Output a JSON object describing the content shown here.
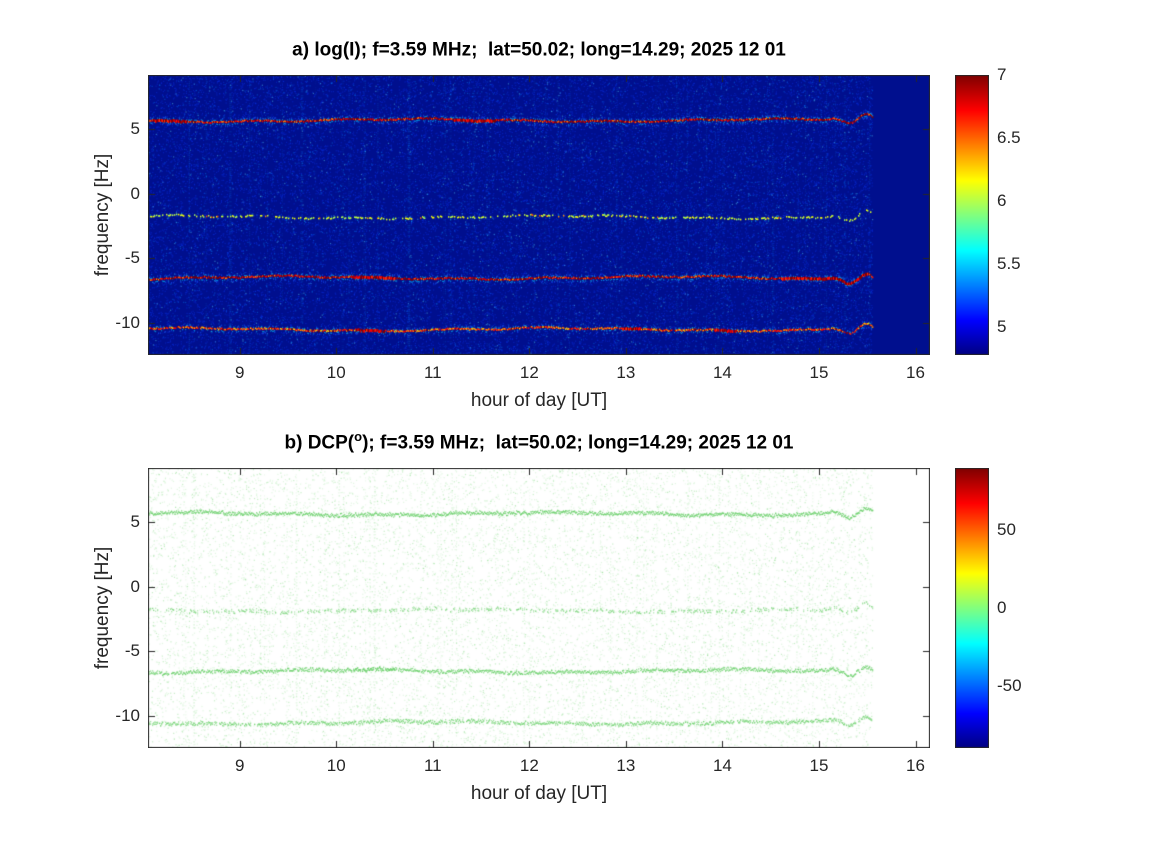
{
  "panels": [
    {
      "id": "a",
      "title_prefix": "a) log(I); f=3.59 MHz;  lat=50.02; long=14.29; 2025 12 01",
      "title_sup": "",
      "title_suffix": "",
      "xlabel": "hour of day [UT]",
      "ylabel": "frequency [Hz]"
    },
    {
      "id": "b",
      "title_prefix": "b) DCP(",
      "title_sup": "o",
      "title_suffix": "); f=3.59 MHz;  lat=50.02; long=14.29; 2025 12 01",
      "xlabel": "hour of day [UT]",
      "ylabel": "frequency [Hz]"
    }
  ],
  "colors": {
    "background_a": "#000f8e",
    "background_b": "#ffffff",
    "axes": "#262626",
    "trace_green": "#5fcd5f"
  },
  "chart_data": [
    {
      "type": "heatmap",
      "panel": "a",
      "quantity": "log(I)",
      "title": "a) log(I); f=3.59 MHz;  lat=50.02; long=14.29; 2025 12 01",
      "xlabel": "hour of day [UT]",
      "ylabel": "frequency [Hz]",
      "x_range_hours": [
        8.05,
        16.15
      ],
      "y_range_hz": [
        -12.5,
        9.2
      ],
      "xticks": [
        9,
        10,
        11,
        12,
        13,
        14,
        15,
        16
      ],
      "yticks": [
        5,
        0,
        -5,
        -10
      ],
      "grid": false,
      "legend": false,
      "colormap": "jet",
      "colorbar_range": [
        4.78,
        7.0
      ],
      "colorbar_ticks": [
        7,
        6.5,
        6,
        5.5,
        5
      ],
      "background_level": 4.9,
      "data_end_hour": 15.55,
      "spectral_lines": [
        {
          "frequency_hz": 5.7,
          "peak_level": 7.0,
          "strength": 1.0,
          "bursts_ut": [
            [
              8.1,
              8.45
            ],
            [
              11.2,
              11.65
            ]
          ],
          "description": "strong continuous Doppler trace, red-orange core with cyan halo"
        },
        {
          "frequency_hz": -1.8,
          "peak_level": 5.6,
          "strength": 0.3,
          "bursts_ut": [],
          "description": "weak intermittent trace"
        },
        {
          "frequency_hz": -6.5,
          "peak_level": 7.0,
          "strength": 1.0,
          "bursts_ut": [
            [
              10.15,
              10.6
            ],
            [
              14.6,
              15.5
            ]
          ],
          "description": "strong trace, red burst near 10.2-10.6 UT, wavy after 14.5 UT"
        },
        {
          "frequency_hz": -10.5,
          "peak_level": 6.5,
          "strength": 0.75,
          "bursts_ut": [
            [
              10.2,
              10.5
            ],
            [
              12.95,
              13.15
            ],
            [
              13.9,
              14.15
            ]
          ],
          "description": "moderate wavy trace with loop near 15.4 UT"
        }
      ]
    },
    {
      "type": "heatmap",
      "panel": "b",
      "quantity": "DCP(o)",
      "title": "b) DCP(o); f=3.59 MHz;  lat=50.02; long=14.29; 2025 12 01",
      "xlabel": "hour of day [UT]",
      "ylabel": "frequency [Hz]",
      "x_range_hours": [
        8.05,
        16.15
      ],
      "y_range_hz": [
        -12.5,
        9.2
      ],
      "xticks": [
        9,
        10,
        11,
        12,
        13,
        14,
        15,
        16
      ],
      "yticks": [
        5,
        0,
        -5,
        -10
      ],
      "grid": false,
      "legend": false,
      "colormap": "jet",
      "colorbar_range": [
        -90,
        90
      ],
      "colorbar_ticks": [
        50,
        0,
        -50
      ],
      "background_level": null,
      "data_end_hour": 15.55,
      "spectral_lines": [
        {
          "frequency_hz": 5.7,
          "dcp_deg": 0,
          "strength": 1.0,
          "bursts_ut": [],
          "description": "continuous trace near 0 deg (green)"
        },
        {
          "frequency_hz": -1.8,
          "dcp_deg": 0,
          "strength": 0.35,
          "bursts_ut": [],
          "description": "weak intermittent trace near 0 deg"
        },
        {
          "frequency_hz": -6.5,
          "dcp_deg": 0,
          "strength": 0.9,
          "bursts_ut": [
            [
              10.15,
              10.6
            ]
          ],
          "description": "trace near 0 deg, denser 10.2-10.6 UT, wavy after 14.5 UT"
        },
        {
          "frequency_hz": -10.5,
          "dcp_deg": 0,
          "strength": 0.7,
          "bursts_ut": [],
          "description": "wavy trace near 0 deg with loop near 15.4 UT"
        }
      ]
    }
  ]
}
